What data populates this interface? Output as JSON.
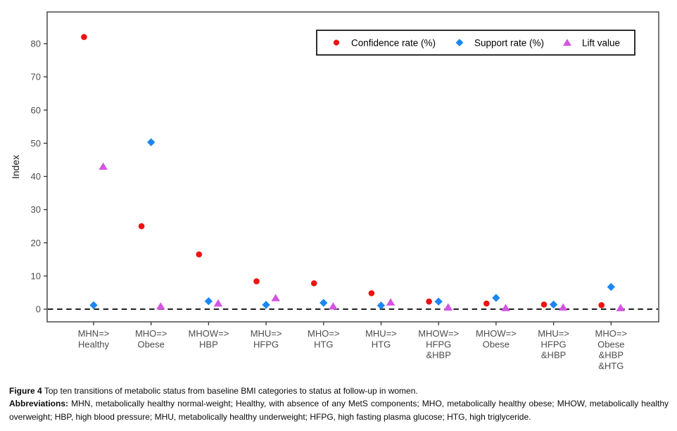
{
  "figure": {
    "caption_label": "Figure 4",
    "caption_text": "Top ten transitions of metabolic status from baseline BMI categories to status at follow-up in women.",
    "abbrev_label": "Abbreviations:",
    "abbrev_text": "MHN, metabolically healthy normal-weight; Healthy, with absence of any MetS components; MHO, metabolically healthy obese; MHOW, metabolically healthy overweight; HBP, high blood pressure; MHU, metabolically healthy underweight; HFPG, high fasting plasma glucose; HTG, high triglyceride."
  },
  "chart_data": {
    "type": "scatter",
    "ylabel": "Index",
    "ylim": [
      -4,
      90
    ],
    "yticks": [
      0,
      10,
      20,
      30,
      40,
      50,
      60,
      70,
      80
    ],
    "zero_line": 0,
    "grid": false,
    "legend_position": "top-right-inside",
    "categories": [
      [
        "MHN=>",
        "Healthy"
      ],
      [
        "MHO=>",
        "Obese"
      ],
      [
        "MHOW=>",
        "HBP"
      ],
      [
        "MHU=>",
        "HFPG"
      ],
      [
        "MHO=>",
        "HTG"
      ],
      [
        "MHU=>",
        "HTG"
      ],
      [
        "MHOW=>",
        "HFPG",
        "&HBP"
      ],
      [
        "MHOW=>",
        "Obese"
      ],
      [
        "MHU=>",
        "HFPG",
        "&HBP"
      ],
      [
        "MHO=>",
        "Obese",
        "&HBP",
        "&HTG"
      ]
    ],
    "series": [
      {
        "id": "confidence-rate",
        "name": "Confidence rate (%)",
        "marker": "circle",
        "color": "#F01111",
        "values": [
          82,
          25,
          16.5,
          8.4,
          7.8,
          4.8,
          2.3,
          1.7,
          1.4,
          1.2
        ]
      },
      {
        "id": "support-rate",
        "name": "Support rate (%)",
        "marker": "diamond",
        "color": "#1C87F0",
        "values": [
          1.2,
          50.3,
          2.4,
          1.3,
          1.9,
          1.1,
          2.3,
          3.4,
          1.4,
          6.7
        ]
      },
      {
        "id": "lift-value",
        "name": "Lift value",
        "marker": "triangle",
        "color": "#D455E2",
        "values": [
          43,
          0.9,
          1.8,
          3.4,
          0.9,
          2.1,
          0.6,
          0.4,
          0.6,
          0.4
        ]
      }
    ],
    "colors": {
      "axis_text": "#4d4d4d",
      "axis_title": "#1a1a1a",
      "panel_border": "#3d3d3d",
      "zero_line": "#000000",
      "legend_border": "#1a1a1a"
    }
  }
}
